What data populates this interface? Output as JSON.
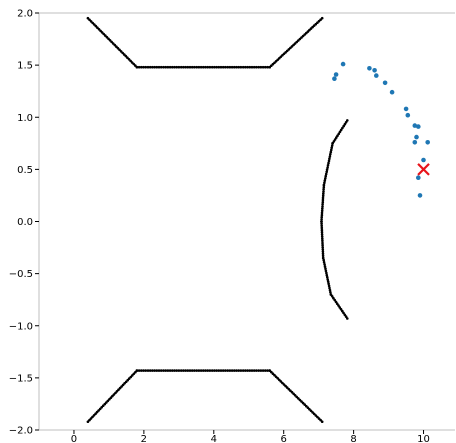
{
  "chart_data": {
    "type": "scatter",
    "title": "",
    "xlabel": "",
    "ylabel": "",
    "xlim": [
      -1.0,
      10.9
    ],
    "ylim": [
      -2.0,
      2.0
    ],
    "xticks": [
      0,
      2,
      4,
      6,
      8,
      10
    ],
    "xtick_labels": [
      "0",
      "2",
      "4",
      "6",
      "8",
      "10"
    ],
    "yticks": [
      -2.0,
      -1.5,
      -1.0,
      -0.5,
      0.0,
      0.5,
      1.0,
      1.5,
      2.0
    ],
    "ytick_labels": [
      "−2.0",
      "−1.5",
      "−1.0",
      "−0.5",
      "0.0",
      "0.5",
      "1.0",
      "1.5",
      "2.0"
    ],
    "grid": false,
    "colors": {
      "boundary": "#000000",
      "points": "#1f77b4",
      "target": "#e8141b"
    },
    "boundaries": [
      {
        "points": [
          [
            0.4,
            1.95
          ],
          [
            1.8,
            1.48
          ],
          [
            5.6,
            1.48
          ],
          [
            7.1,
            1.95
          ]
        ]
      },
      {
        "points": [
          [
            0.4,
            -1.92
          ],
          [
            1.8,
            -1.43
          ],
          [
            5.6,
            -1.43
          ],
          [
            7.1,
            -1.92
          ]
        ]
      },
      {
        "points": [
          [
            7.82,
            0.97
          ],
          [
            7.4,
            0.75
          ],
          [
            7.15,
            0.35
          ],
          [
            7.08,
            0.0
          ],
          [
            7.13,
            -0.35
          ],
          [
            7.35,
            -0.7
          ],
          [
            7.82,
            -0.93
          ]
        ]
      }
    ],
    "scatter_points": [
      [
        7.45,
        1.37
      ],
      [
        7.5,
        1.41
      ],
      [
        7.7,
        1.51
      ],
      [
        8.45,
        1.47
      ],
      [
        8.6,
        1.45
      ],
      [
        8.65,
        1.4
      ],
      [
        8.9,
        1.33
      ],
      [
        9.1,
        1.24
      ],
      [
        9.5,
        1.08
      ],
      [
        9.55,
        1.02
      ],
      [
        9.75,
        0.92
      ],
      [
        9.85,
        0.91
      ],
      [
        9.8,
        0.81
      ],
      [
        9.75,
        0.76
      ],
      [
        10.12,
        0.76
      ],
      [
        10.0,
        0.59
      ],
      [
        9.85,
        0.42
      ],
      [
        9.9,
        0.25
      ]
    ],
    "target": [
      10.0,
      0.5
    ]
  }
}
